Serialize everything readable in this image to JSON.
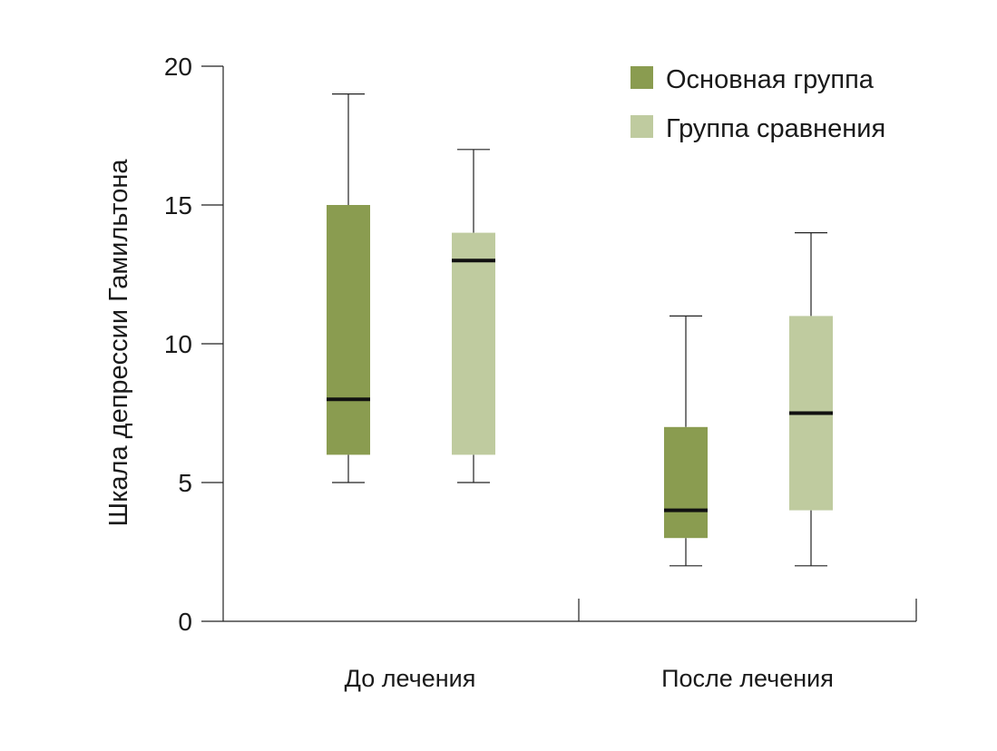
{
  "chart_data": {
    "type": "box",
    "title": "",
    "ylabel": "Шкала депрессии Гамильтона",
    "xlabel": "",
    "ylim": [
      0,
      20
    ],
    "yticks": [
      "0",
      "5",
      "10",
      "15",
      "20"
    ],
    "categories": [
      "До лечения",
      "После лечения"
    ],
    "legend_position": "top-right",
    "series": [
      {
        "name": "Основная группа",
        "color": "#8a9c50",
        "boxes": [
          {
            "min": 5,
            "q1": 6,
            "median": 8,
            "q3": 15,
            "max": 19
          },
          {
            "min": 2,
            "q1": 3,
            "median": 4,
            "q3": 7,
            "max": 11
          }
        ]
      },
      {
        "name": "Группа сравнения",
        "color": "#bfcb9f",
        "boxes": [
          {
            "min": 5,
            "q1": 6,
            "median": 13,
            "q3": 14,
            "max": 17
          },
          {
            "min": 2,
            "q1": 4,
            "median": 7.5,
            "q3": 11,
            "max": 14
          }
        ]
      }
    ]
  }
}
